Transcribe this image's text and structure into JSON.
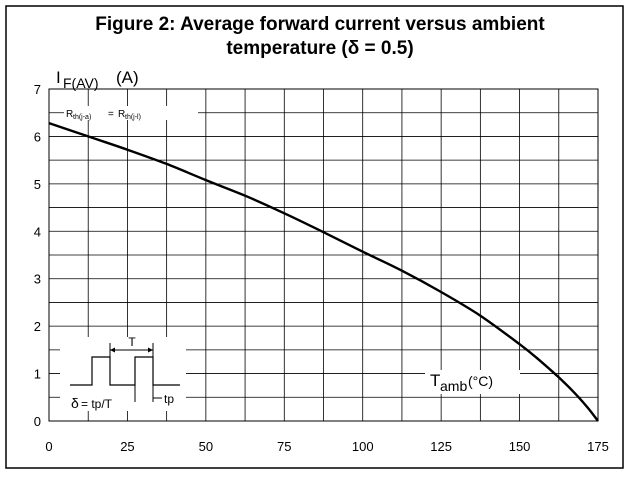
{
  "chart_data": {
    "type": "line",
    "title_line1": "Figure 2: Average forward current versus ambient",
    "title_line2": "temperature (δ = 0.5)",
    "ylabel": {
      "symbol": "I",
      "subscript": "F(AV)",
      "unit": "(A)"
    },
    "xlabel": {
      "symbol": "T",
      "subscript": "amb",
      "unit": "(°C)"
    },
    "xlim": [
      0,
      175
    ],
    "ylim": [
      0,
      7
    ],
    "x_ticks": [
      "0",
      "25",
      "50",
      "75",
      "100",
      "125",
      "150",
      "175"
    ],
    "y_ticks": [
      "0",
      "1",
      "2",
      "3",
      "4",
      "5",
      "6",
      "7"
    ],
    "grid": true,
    "series": [
      {
        "name": "Rth(j-a) = Rth(j-l)",
        "x": [
          0,
          12.5,
          25,
          37.5,
          50,
          62.5,
          75,
          87.5,
          100,
          112.5,
          125,
          137.5,
          150,
          156,
          162.5,
          168,
          172,
          175
        ],
        "y": [
          6.28,
          6.0,
          5.72,
          5.42,
          5.08,
          4.75,
          4.38,
          3.98,
          3.57,
          3.17,
          2.72,
          2.22,
          1.62,
          1.3,
          0.92,
          0.56,
          0.26,
          0.0
        ]
      }
    ],
    "annotations": {
      "rth_left": {
        "main": "R",
        "sub": "th(j-a)"
      },
      "rth_eq": "=",
      "rth_right": {
        "main": "R",
        "sub": "th(j-l)"
      },
      "inset_T": "T",
      "inset_delta": "δ",
      "inset_eq": "= tp/T",
      "inset_tp": "tp"
    }
  }
}
